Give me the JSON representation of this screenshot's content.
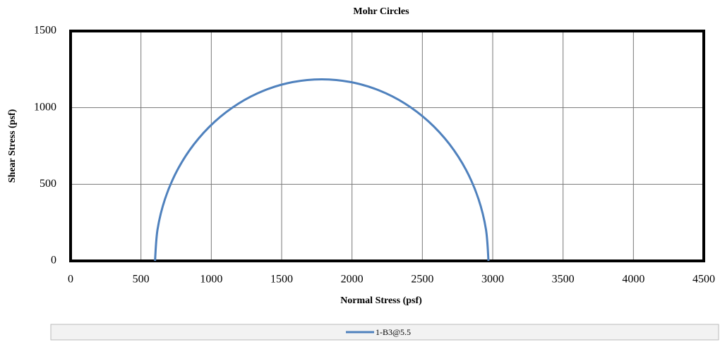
{
  "chart_data": {
    "type": "line",
    "title": "Mohr Circles",
    "x_label": "Normal Stress (psf)",
    "y_label": "Shear Stress (psf)",
    "x": [
      600,
      618.0,
      671.5,
      758.8,
      877.3,
      1023.3,
      1192.5,
      1379.7,
      1579.2,
      1785,
      1990.8,
      2190.3,
      2377.5,
      2546.7,
      2692.7,
      2811.2,
      2898.5,
      2952.0,
      2970
    ],
    "series": [
      {
        "name": "1-B3@5.5",
        "color": "#4f81bd",
        "values": [
          0,
          205.8,
          405.3,
          592.5,
          761.7,
          907.7,
          1026.2,
          1113.5,
          1167.0,
          1185,
          1167.0,
          1113.5,
          1026.2,
          907.7,
          761.7,
          592.5,
          405.3,
          205.8,
          0
        ]
      }
    ],
    "xlim": [
      0,
      4500
    ],
    "xticks": [
      0,
      500,
      1000,
      1500,
      2000,
      2500,
      3000,
      3500,
      4000,
      4500
    ],
    "ylim": [
      0,
      1500
    ],
    "yticks": [
      0,
      500,
      1000,
      1500
    ],
    "grid": true
  }
}
